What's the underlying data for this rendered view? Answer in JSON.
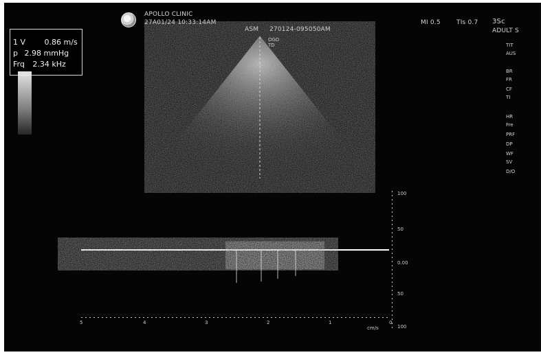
{
  "header": {
    "clinic": "APOLLO CLINIC",
    "datetime": "27A01/24 10:33:14AM",
    "patient_id_label": "ASM",
    "patient_id": "270124-095050AM",
    "mi": "MI 0.5",
    "tis": "TIs 0.7",
    "probe": "3Sc",
    "preset": "ADULT S"
  },
  "doppler_box": {
    "row1_label": "1 V",
    "row1_value": "0.86 m/s",
    "row2_label": "p",
    "row2_value": "2.98 mmHg",
    "row3_label": "Frq",
    "row3_value": "2.34 kHz"
  },
  "image_labels": {
    "top_marker": "OGD\nTD"
  },
  "doppler_scale": {
    "top": "100",
    "mid_top": "50",
    "zero": "0.00",
    "mid_bottom": "50",
    "bottom": "100",
    "time_ticks": [
      "5",
      "4",
      "3",
      "2",
      "1",
      "0"
    ],
    "units": "cm/s"
  },
  "right_panel": {
    "items": [
      "TIT",
      "AUS",
      "BR",
      "FR",
      "CF",
      "TI",
      "HR",
      "Fre",
      "PRF",
      "DP",
      "WF",
      "SV",
      "D/O"
    ]
  },
  "colors": {
    "background": "#050505",
    "text": "#e6e6e6",
    "accent": "#d7d7d7"
  }
}
